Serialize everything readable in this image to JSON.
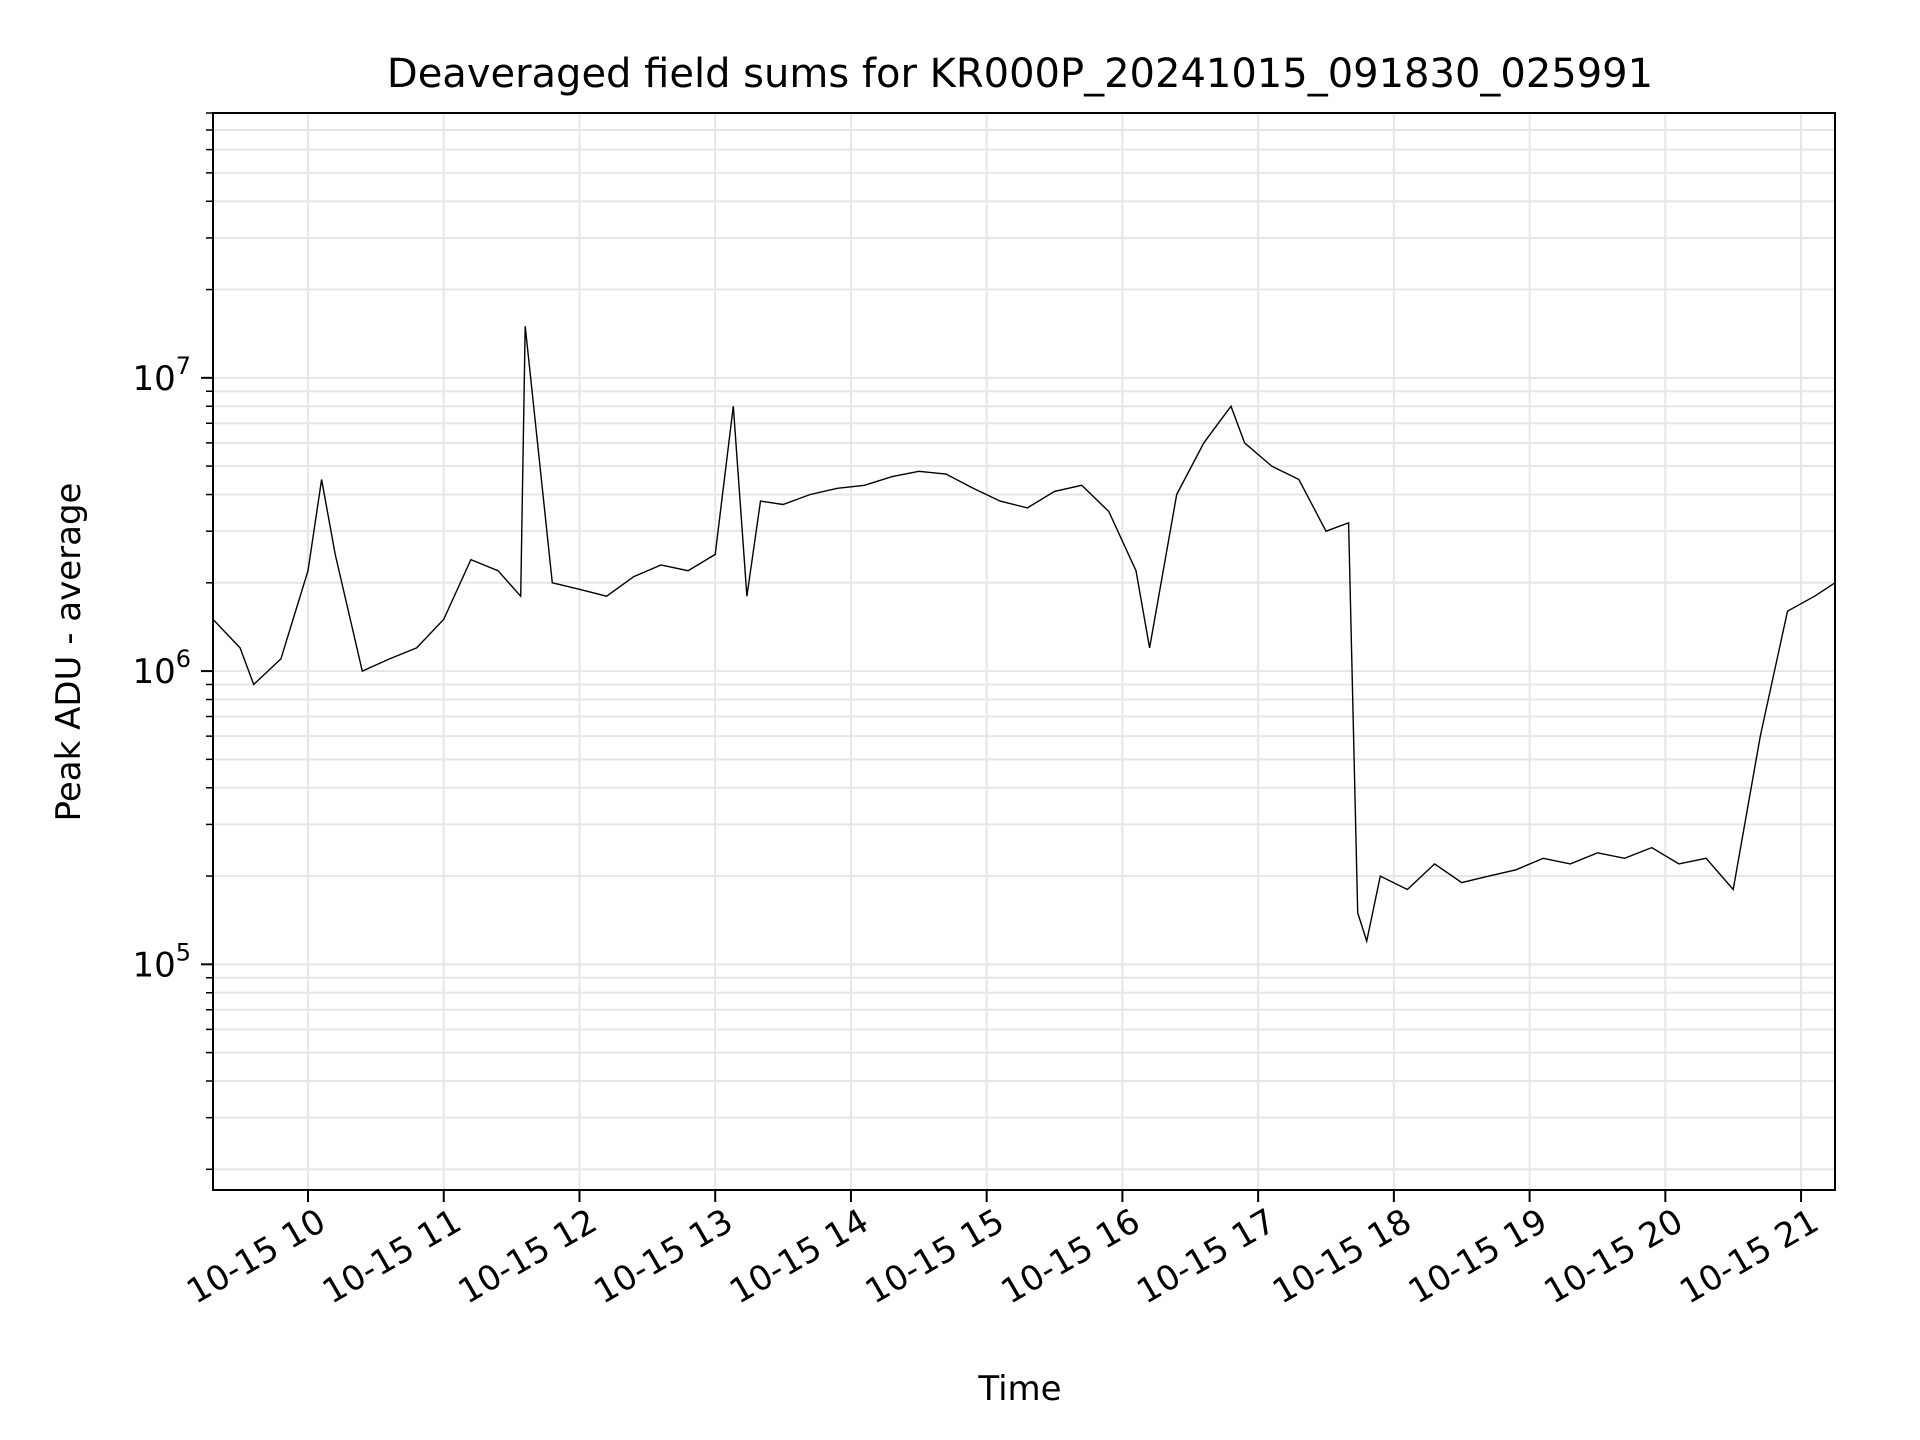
{
  "chart_data": {
    "type": "line",
    "title": "Deaveraged field sums for KR000P_20241015_091830_025991",
    "xlabel": "Time",
    "ylabel": "Peak ADU - average",
    "y_scale": "log",
    "grid": true,
    "x_tick_labels": [
      "10-15 10",
      "10-15 11",
      "10-15 12",
      "10-15 13",
      "10-15 14",
      "10-15 15",
      "10-15 16",
      "10-15 17",
      "10-15 18",
      "10-15 19",
      "10-15 20",
      "10-15 21"
    ],
    "y_tick_labels": [
      {
        "base": "10",
        "exp": "5"
      },
      {
        "base": "10",
        "exp": "6"
      },
      {
        "base": "10",
        "exp": "7"
      }
    ],
    "ylim": [
      17000,
      80000000
    ],
    "xlim": [
      "2024-10-15 09:18",
      "2024-10-15 21:15"
    ],
    "line_color": "#000000",
    "grid_color": "#e6e6e6",
    "series": [
      {
        "x": [
          "2024-10-15 09:18",
          "2024-10-15 09:30",
          "2024-10-15 09:36",
          "2024-10-15 09:48",
          "2024-10-15 10:00",
          "2024-10-15 10:06",
          "2024-10-15 10:12",
          "2024-10-15 10:24",
          "2024-10-15 10:36",
          "2024-10-15 10:48",
          "2024-10-15 11:00",
          "2024-10-15 11:12",
          "2024-10-15 11:24",
          "2024-10-15 11:34",
          "2024-10-15 11:36",
          "2024-10-15 11:48",
          "2024-10-15 12:00",
          "2024-10-15 12:12",
          "2024-10-15 12:24",
          "2024-10-15 12:36",
          "2024-10-15 12:48",
          "2024-10-15 13:00",
          "2024-10-15 13:08",
          "2024-10-15 13:14",
          "2024-10-15 13:20",
          "2024-10-15 13:30",
          "2024-10-15 13:42",
          "2024-10-15 13:54",
          "2024-10-15 14:06",
          "2024-10-15 14:18",
          "2024-10-15 14:30",
          "2024-10-15 14:42",
          "2024-10-15 14:54",
          "2024-10-15 15:06",
          "2024-10-15 15:18",
          "2024-10-15 15:30",
          "2024-10-15 15:42",
          "2024-10-15 15:54",
          "2024-10-15 16:06",
          "2024-10-15 16:12",
          "2024-10-15 16:24",
          "2024-10-15 16:36",
          "2024-10-15 16:48",
          "2024-10-15 16:54",
          "2024-10-15 17:06",
          "2024-10-15 17:18",
          "2024-10-15 17:30",
          "2024-10-15 17:40",
          "2024-10-15 17:44",
          "2024-10-15 17:48",
          "2024-10-15 17:54",
          "2024-10-15 18:06",
          "2024-10-15 18:18",
          "2024-10-15 18:30",
          "2024-10-15 18:42",
          "2024-10-15 18:54",
          "2024-10-15 19:06",
          "2024-10-15 19:18",
          "2024-10-15 19:30",
          "2024-10-15 19:42",
          "2024-10-15 19:54",
          "2024-10-15 20:06",
          "2024-10-15 20:18",
          "2024-10-15 20:30",
          "2024-10-15 20:42",
          "2024-10-15 20:54",
          "2024-10-15 21:06",
          "2024-10-15 21:15"
        ],
        "y": [
          1500000,
          1200000,
          900000,
          1100000,
          2200000,
          4500000,
          2500000,
          1000000,
          1100000,
          1200000,
          1500000,
          2400000,
          2200000,
          1800000,
          15000000,
          2000000,
          1900000,
          1800000,
          2100000,
          2300000,
          2200000,
          2500000,
          8000000,
          1800000,
          3800000,
          3700000,
          4000000,
          4200000,
          4300000,
          4600000,
          4800000,
          4700000,
          4200000,
          3800000,
          3600000,
          4100000,
          4300000,
          3500000,
          2200000,
          1200000,
          4000000,
          6000000,
          8000000,
          6000000,
          5000000,
          4500000,
          3000000,
          3200000,
          150000,
          120000,
          200000,
          180000,
          220000,
          190000,
          200000,
          210000,
          230000,
          220000,
          240000,
          230000,
          250000,
          220000,
          230000,
          180000,
          600000,
          1600000,
          1800000,
          2000000
        ]
      }
    ]
  }
}
